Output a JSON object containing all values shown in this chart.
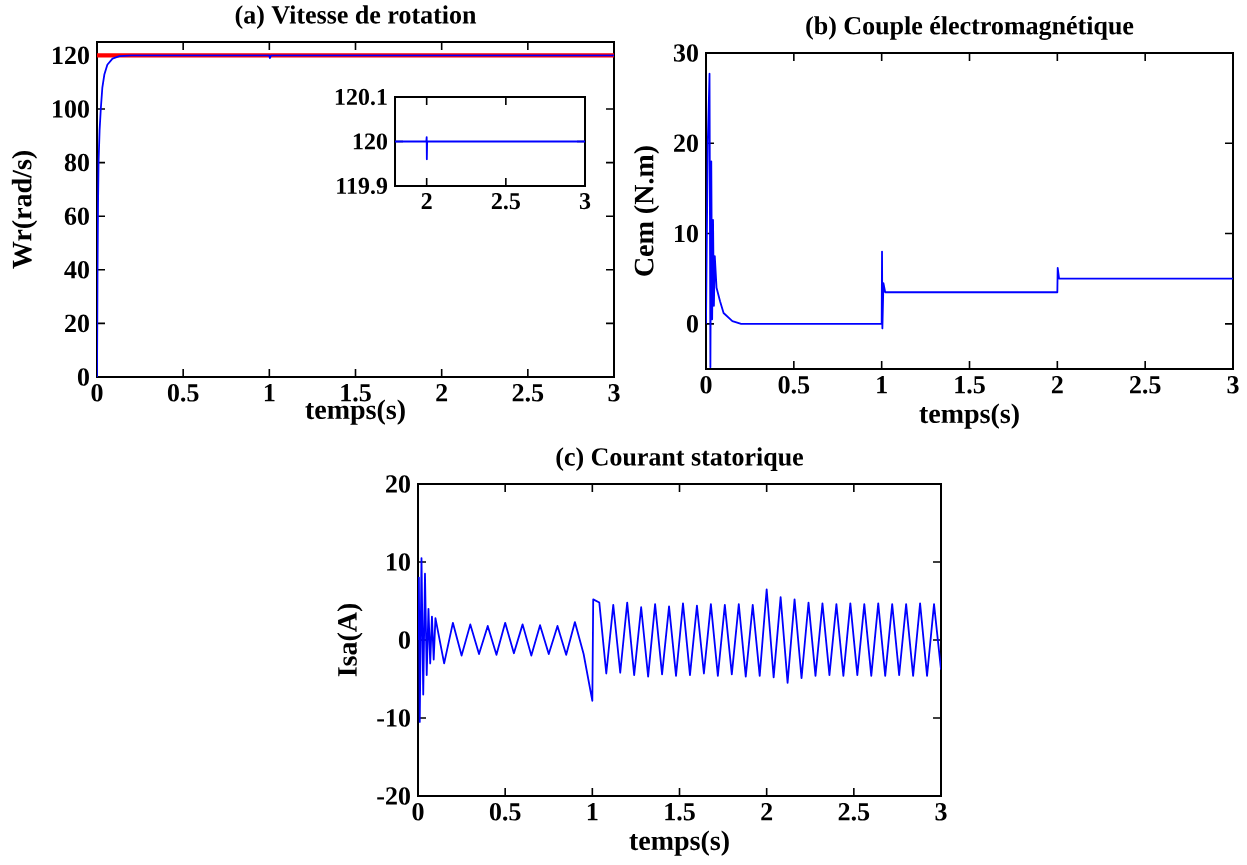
{
  "chart_data": [
    {
      "type": "line",
      "title": "(a) Vitesse de rotation",
      "xlabel": "temps(s)",
      "ylabel": "Wr(rad/s)",
      "xlim": [
        0,
        3
      ],
      "ylim": [
        0,
        125
      ],
      "xticks": [
        0,
        0.5,
        1,
        1.5,
        2,
        2.5,
        3
      ],
      "yticks": [
        0,
        20,
        40,
        60,
        80,
        100,
        120
      ],
      "series": [
        {
          "color": "#ff0000",
          "x": [
            0,
            3
          ],
          "values": [
            120,
            120
          ]
        },
        {
          "color": "#0000ff",
          "x": [
            0,
            0.003,
            0.006,
            0.009,
            0.015,
            0.022,
            0.031,
            0.043,
            0.06,
            0.09,
            0.13,
            0.2,
            1,
            1.003,
            1.01,
            3
          ],
          "values": [
            0,
            40,
            65,
            80,
            92,
            100,
            108,
            113,
            116.5,
            118.8,
            119.7,
            120,
            120,
            119,
            120,
            120
          ]
        }
      ]
    },
    {
      "type": "line",
      "xlim": [
        1.8,
        3
      ],
      "ylim": [
        119.9,
        120.1
      ],
      "xticks": [
        2,
        2.5,
        3
      ],
      "yticks": [
        119.9,
        120,
        120.1
      ],
      "series": [
        {
          "color": "#0000ff",
          "x": [
            1.8,
            1.998,
            2,
            2.001,
            2.003,
            2.02,
            3
          ],
          "values": [
            120,
            120,
            120.01,
            119.96,
            120,
            120,
            120
          ]
        }
      ]
    },
    {
      "type": "line",
      "title": "(b) Couple électromagnétique",
      "xlabel": "temps(s)",
      "ylabel": "Cem (N.m)",
      "xlim": [
        0,
        3
      ],
      "ylim": [
        -5,
        30
      ],
      "xticks": [
        0,
        0.5,
        1,
        1.5,
        2,
        2.5,
        3
      ],
      "yticks": [
        0,
        10,
        20,
        30
      ],
      "series": [
        {
          "color": "#0000ff",
          "x": [
            0,
            0.01,
            0.02,
            0.025,
            0.03,
            0.035,
            0.04,
            0.045,
            0.05,
            0.06,
            0.08,
            0.1,
            0.15,
            0.2,
            1,
            1.002,
            1.004,
            1.01,
            1.02,
            2,
            2.002,
            2.01,
            3
          ],
          "values": [
            0,
            20,
            27.7,
            -4.8,
            18,
            0.5,
            11.5,
            2,
            7.5,
            4,
            2.5,
            1.2,
            0.3,
            0,
            0,
            8,
            -0.5,
            4.5,
            3.5,
            3.5,
            6.2,
            5,
            5
          ]
        }
      ]
    },
    {
      "type": "line",
      "title": "(c) Courant statorique",
      "xlabel": "temps(s)",
      "ylabel": "Isa(A)",
      "xlim": [
        0,
        3
      ],
      "ylim": [
        -20,
        20
      ],
      "xticks": [
        0,
        0.5,
        1,
        1.5,
        2,
        2.5,
        3
      ],
      "yticks": [
        -20,
        -10,
        0,
        10,
        20
      ],
      "series": [
        {
          "color": "#0000ff",
          "x": [
            0,
            0.005,
            0.01,
            0.02,
            0.03,
            0.04,
            0.05,
            0.06,
            0.07,
            0.08,
            0.09,
            0.1,
            0.15,
            0.2,
            0.25,
            0.3,
            0.35,
            0.4,
            0.45,
            0.5,
            0.55,
            0.6,
            0.65,
            0.7,
            0.75,
            0.8,
            0.85,
            0.9,
            0.95,
            1.0,
            1.005,
            1.04,
            1.08,
            1.12,
            1.16,
            1.2,
            1.24,
            1.28,
            1.32,
            1.36,
            1.4,
            1.44,
            1.48,
            1.52,
            1.56,
            1.6,
            1.64,
            1.68,
            1.72,
            1.76,
            1.8,
            1.84,
            1.88,
            1.92,
            1.96,
            2.0,
            2.04,
            2.08,
            2.12,
            2.16,
            2.2,
            2.24,
            2.28,
            2.32,
            2.36,
            2.4,
            2.44,
            2.48,
            2.52,
            2.56,
            2.6,
            2.64,
            2.68,
            2.72,
            2.76,
            2.8,
            2.84,
            2.88,
            2.92,
            2.96,
            3.0
          ],
          "values": [
            0,
            8,
            -10.5,
            10.5,
            -7,
            8.5,
            -4.5,
            4,
            -3,
            3,
            -2.5,
            2.8,
            -3,
            2.2,
            -2,
            2,
            -1.8,
            1.8,
            -1.9,
            2.2,
            -1.7,
            2,
            -2,
            1.9,
            -1.8,
            1.8,
            -1.9,
            2.3,
            -1.8,
            -7.8,
            5.2,
            4.8,
            -4.3,
            4.5,
            -4.2,
            4.8,
            -4.5,
            4.2,
            -4.7,
            4.6,
            -4.4,
            4.3,
            -4.6,
            4.7,
            -4.5,
            4.4,
            -4.3,
            4.6,
            -4.6,
            4.5,
            -4.4,
            4.6,
            -4.7,
            4.5,
            -4.6,
            6.5,
            -4.8,
            5.5,
            -5.5,
            5.2,
            -4.9,
            4.8,
            -4.6,
            4.7,
            -4.5,
            4.6,
            -4.6,
            4.7,
            -4.5,
            4.6,
            -4.6,
            4.7,
            -4.6,
            4.6,
            -4.5,
            4.6,
            -4.6,
            4.7,
            -4.6,
            4.6,
            -3.8
          ]
        }
      ]
    }
  ]
}
